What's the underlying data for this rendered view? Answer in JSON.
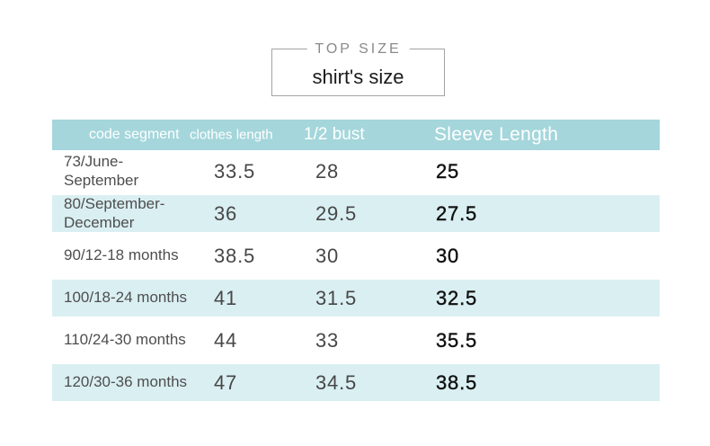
{
  "title": {
    "legend": "TOP SIZE",
    "box_label": "shirt's size"
  },
  "chart_data": {
    "type": "table",
    "title": "TOP SIZE — shirt's size",
    "columns": [
      "code segment",
      "clothes length",
      "1/2 bust",
      "Sleeve Length"
    ],
    "rows": [
      [
        "73/June-\nSeptember",
        "33.5",
        "28",
        "25"
      ],
      [
        "80/September-\nDecember",
        "36",
        "29.5",
        "27.5"
      ],
      [
        "90/12-18 months",
        "38.5",
        "30",
        "30"
      ],
      [
        "100/18-24 months",
        "41",
        "31.5",
        "32.5"
      ],
      [
        "110/24-30 months",
        "44",
        "33",
        "35.5"
      ],
      [
        "120/30-36 months",
        "47",
        "34.5",
        "38.5"
      ]
    ],
    "layout": {
      "header_bg": "#a4d6db",
      "alt_row_bg": "#daeff2",
      "header_text_color": "#ffffff",
      "row_label_color": "#4e4e4e",
      "value_color": "#474747",
      "sleeve_value_color": "#111111",
      "title_legend_color": "#8a8a8a",
      "title_box_border_color": "#a3a3a3",
      "alternating_rows": true,
      "grid": false
    }
  }
}
